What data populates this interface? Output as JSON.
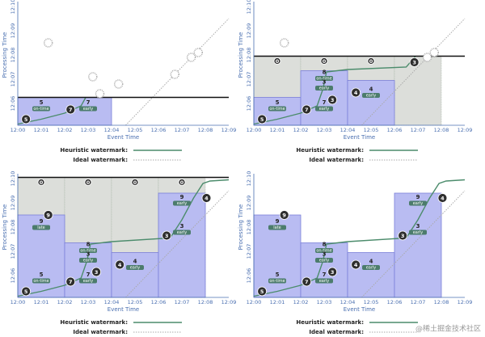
{
  "axes": {
    "x_label": "Event Time",
    "y_label": "Processing Time",
    "x_ticks": [
      "12:00",
      "12:01",
      "12:02",
      "12:03",
      "12:04",
      "12:05",
      "12:06",
      "12:07",
      "12:08",
      "12:09"
    ],
    "y_ticks": [
      "12:06",
      "12:07",
      "12:08",
      "12:09",
      "12:10"
    ]
  },
  "legend": {
    "heuristic": "Heuristic watermark:",
    "ideal": "Ideal watermark:"
  },
  "panels": [
    {
      "bubbles": [
        5,
        7
      ],
      "pane_labels": [
        {
          "count": 5,
          "timing": "on-time"
        },
        {
          "count": 7,
          "timing": "early"
        }
      ]
    },
    {
      "bubbles": [
        5,
        7,
        3,
        4,
        3
      ],
      "pane_labels": [
        {
          "count": 5,
          "timing": "on-time"
        },
        {
          "count": 7,
          "timing": "early"
        },
        {
          "count": 8,
          "timing": "on-time"
        },
        {
          "count": 3,
          "timing": "early"
        },
        {
          "count": 4,
          "timing": "early"
        }
      ],
      "zeros": [
        0,
        0,
        0
      ]
    },
    {
      "bubbles": [
        5,
        7,
        3,
        4,
        3,
        9,
        4
      ],
      "pane_labels": [
        {
          "count": 5,
          "timing": "on-time"
        },
        {
          "count": 7,
          "timing": "early"
        },
        {
          "count": 8,
          "timing": "on-time"
        },
        {
          "count": 3,
          "timing": "early"
        },
        {
          "count": 4,
          "timing": "early"
        },
        {
          "count": 9,
          "timing": "late"
        },
        {
          "count": 9,
          "timing": "early"
        },
        {
          "count": 3,
          "timing": "early"
        }
      ],
      "zeros": [
        0,
        0,
        0,
        0
      ]
    },
    {
      "bubbles": [
        5,
        7,
        3,
        4,
        3,
        9,
        4
      ],
      "pane_labels": [
        {
          "count": 5,
          "timing": "on-time"
        },
        {
          "count": 7,
          "timing": "early"
        },
        {
          "count": 8,
          "timing": "on-time"
        },
        {
          "count": 3,
          "timing": "early"
        },
        {
          "count": 4,
          "timing": "early"
        },
        {
          "count": 9,
          "timing": "late"
        },
        {
          "count": 9,
          "timing": "early"
        },
        {
          "count": 3,
          "timing": "early"
        }
      ]
    }
  ],
  "footer": "@稀土掘金技术社区"
}
